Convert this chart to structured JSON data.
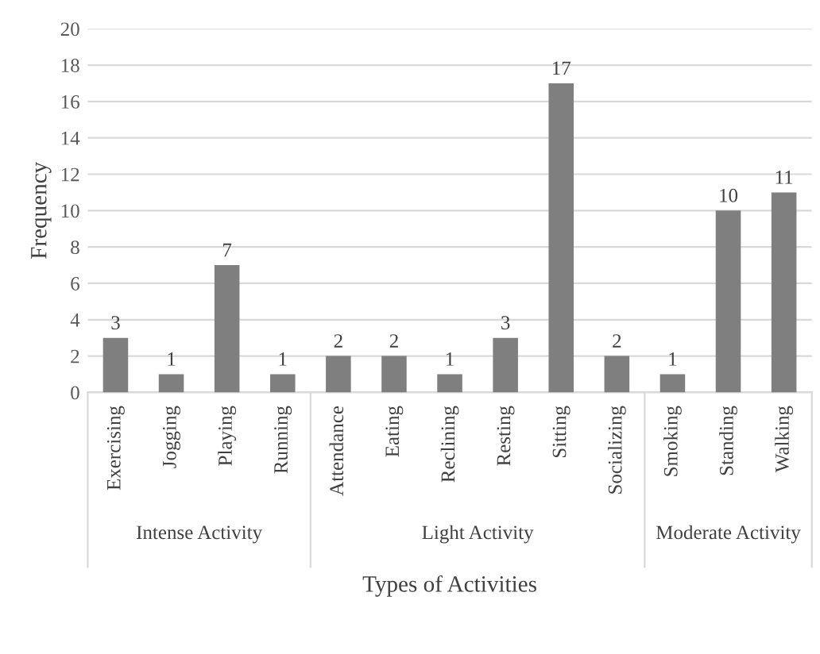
{
  "chart_data": {
    "type": "bar",
    "xlabel": "Types of Activities",
    "ylabel": "Frequency",
    "categories": [
      "Exercising",
      "Jogging",
      "Playing",
      "Running",
      "Attendance",
      "Eating",
      "Reclining",
      "Resting",
      "Sitting",
      "Socializing",
      "Smoking",
      "Standing",
      "Walking"
    ],
    "values": [
      3,
      1,
      7,
      1,
      2,
      2,
      1,
      3,
      17,
      2,
      1,
      10,
      11
    ],
    "color": "#7f7f7f",
    "ylim": [
      0,
      20
    ],
    "yticks": [
      0,
      2,
      4,
      6,
      8,
      10,
      12,
      14,
      16,
      18,
      20
    ],
    "grid": "y",
    "data_labels": true,
    "annotations": [
      "Intense Activity",
      "Light Activity",
      "Moderate Activity"
    ]
  }
}
